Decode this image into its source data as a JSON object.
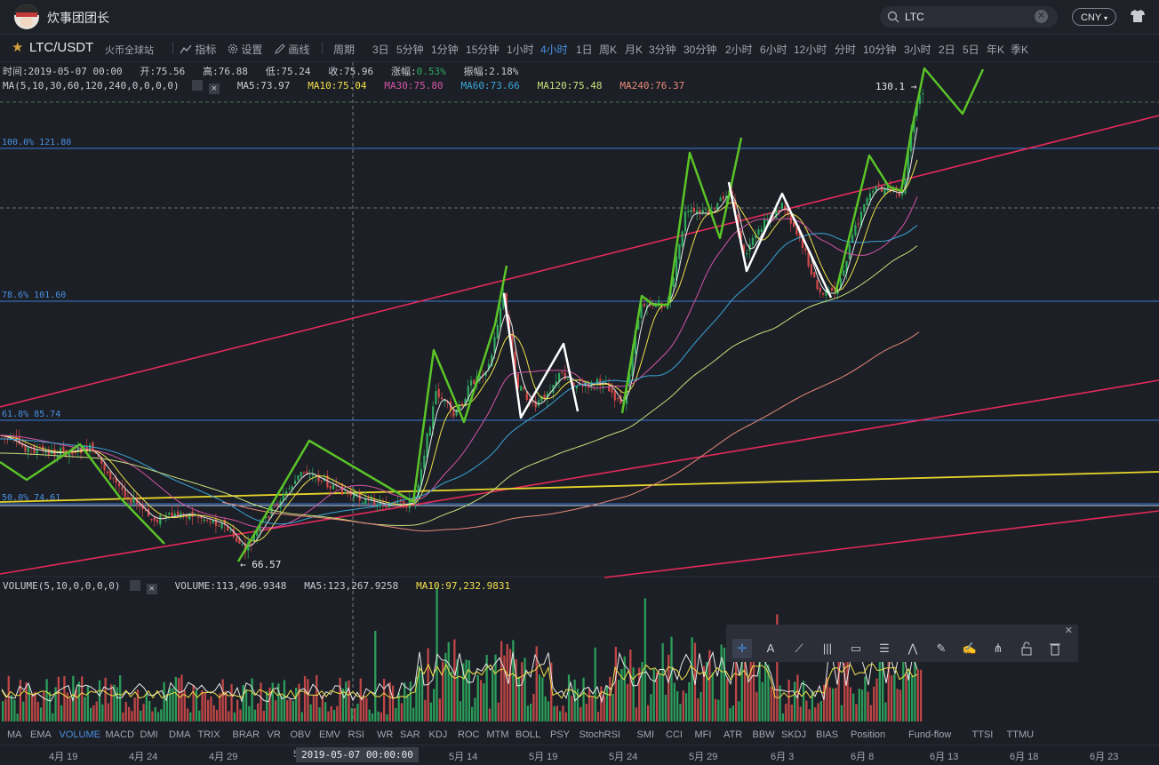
{
  "topbar": {
    "username": "炊事团团长",
    "search_value": "LTC",
    "currency": "CNY",
    "currency_arrow": "▾"
  },
  "toolbar": {
    "pair": "LTC/USDT",
    "exchange": "火币全球站",
    "indicators_label": "指标",
    "settings_label": "设置",
    "draw_label": "画线",
    "period_label": "周期",
    "periods": [
      "3日",
      "5分钟",
      "1分钟",
      "15分钟",
      "1小时",
      "4小时",
      "1日",
      "周K",
      "月K",
      "3分钟",
      "30分钟",
      "2小时",
      "6小时",
      "12小时",
      "分时",
      "10分钟",
      "3小时",
      "2日",
      "5日",
      "年K",
      "季K"
    ],
    "active_period": "4小时"
  },
  "ohlc": {
    "time_label": "时间:2019-05-07 00:00",
    "open_label": "开:75.56",
    "high_label": "高:76.88",
    "low_label": "低:75.24",
    "close_label": "收:75.96",
    "change_label": "涨幅:",
    "change_value": "0.53%",
    "amplitude_label": "振幅:2.18%"
  },
  "ma": {
    "title": "MA(5,10,30,60,120,240,0,0,0,0)",
    "ma5": "MA5:73.97",
    "ma10": "MA10:75.04",
    "ma30": "MA30:75.80",
    "ma60": "MA60:73.66",
    "ma120": "MA120:75.48",
    "ma240": "MA240:76.37"
  },
  "volume_info": {
    "title": "VOLUME(5,10,0,0,0,0)",
    "volume": "VOLUME:113,496.9348",
    "ma5": "MA5:123,267.9258",
    "ma10": "MA10:97,232.9831"
  },
  "fib_labels": {
    "f100": "100.0% 121.80",
    "f786": "78.6% 101.60",
    "f618": "61.8% 85.74",
    "f500": "50.0% 74.61"
  },
  "price_marks": {
    "high": "130.1 →",
    "low": "← 66.57"
  },
  "indicator_tabs": [
    "MA",
    "EMA",
    "VOLUME",
    "MACD",
    "DMI",
    "DMA",
    "TRIX",
    "BRAR",
    "VR",
    "OBV",
    "EMV",
    "RSI",
    "WR",
    "SAR",
    "KDJ",
    "ROC",
    "MTM",
    "BOLL",
    "PSY",
    "StochRSI",
    "SMI",
    "CCI",
    "MFI",
    "ATR",
    "BBW",
    "SKDJ",
    "BIAS",
    "Position",
    "Fund-flow",
    "TTSI",
    "TTMU"
  ],
  "active_indicator": "VOLUME",
  "dates": [
    "4月 19",
    "4月 24",
    "4月 29",
    "5",
    "5月 14",
    "5月 19",
    "5月 24",
    "5月 29",
    "6月 3",
    "6月 8",
    "6月 13",
    "6月 18",
    "6月 23"
  ],
  "crosshair_date": "2019-05-07 00:00:00",
  "draw_tools": [
    "crosshair-icon",
    "text-icon",
    "trendline-icon",
    "parallel-lines-icon",
    "rectangle-icon",
    "fibonacci-icon",
    "wave-icon",
    "ruler-icon",
    "brush-icon",
    "pitchfork-icon",
    "lock-icon",
    "trash-icon"
  ],
  "colors": {
    "background": "#1c1f26",
    "up": "#2eaa5f",
    "down": "#d24a4a",
    "fib": "#3a7bd5",
    "trend": "#e52a5a",
    "yellow_line": "#e8d72a",
    "wave_green": "#5bc427",
    "wave_white": "#ffffff",
    "accent": "#4a90e2"
  }
}
